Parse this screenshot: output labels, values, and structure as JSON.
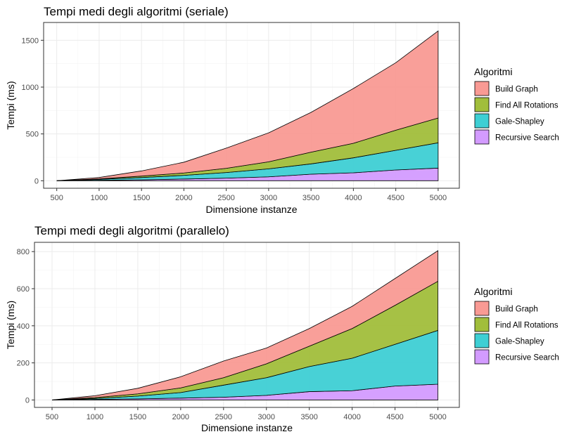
{
  "legend_title": "Algoritmi",
  "chart_data": [
    {
      "type": "area",
      "stacked": true,
      "title": "Tempi medi degli algoritmi (seriale)",
      "xlabel": "Dimensione instanze",
      "ylabel": "Tempi (ms)",
      "x": [
        500,
        1000,
        1500,
        2000,
        2500,
        3000,
        3500,
        4000,
        4500,
        5000
      ],
      "xticks": [
        500,
        1000,
        1500,
        2000,
        2500,
        3000,
        3500,
        4000,
        4500,
        5000
      ],
      "yticks": [
        0,
        500,
        1000,
        1500
      ],
      "xlim": [
        345,
        5250
      ],
      "ylim": [
        -80,
        1690
      ],
      "grid": true,
      "legend_position": "right",
      "series": [
        {
          "name": "Recursive Search",
          "color": "#D39BFF",
          "values": [
            0,
            5,
            10,
            18,
            28,
            42,
            70,
            85,
            115,
            135
          ]
        },
        {
          "name": "Gale-Shapley",
          "color": "#3ECFD4",
          "values": [
            0,
            10,
            25,
            40,
            60,
            85,
            110,
            160,
            210,
            270
          ]
        },
        {
          "name": "Find All Rotations",
          "color": "#A1BE3B",
          "values": [
            0,
            5,
            15,
            25,
            45,
            75,
            125,
            155,
            215,
            265
          ]
        },
        {
          "name": "Build Graph",
          "color": "#F99A94",
          "values": [
            0,
            15,
            55,
            115,
            215,
            310,
            425,
            585,
            720,
            930
          ]
        }
      ]
    },
    {
      "type": "area",
      "stacked": true,
      "title": "Tempi medi degli algoritmi (parallelo)",
      "xlabel": "Dimensione instanze",
      "ylabel": "Tempi (ms)",
      "x": [
        500,
        1000,
        1500,
        2000,
        2500,
        3000,
        3500,
        4000,
        4500,
        5000
      ],
      "xticks": [
        500,
        1000,
        1500,
        2000,
        2500,
        3000,
        3500,
        4000,
        4500,
        5000
      ],
      "yticks": [
        0,
        200,
        400,
        600,
        800
      ],
      "xlim": [
        295,
        5250
      ],
      "ylim": [
        -40,
        850
      ],
      "grid": true,
      "legend_position": "right",
      "series": [
        {
          "name": "Recursive Search",
          "color": "#D39BFF",
          "values": [
            0,
            3,
            6,
            10,
            15,
            25,
            45,
            50,
            75,
            85
          ]
        },
        {
          "name": "Gale-Shapley",
          "color": "#3ECFD4",
          "values": [
            0,
            5,
            15,
            30,
            65,
            95,
            135,
            175,
            225,
            290
          ]
        },
        {
          "name": "Find All Rotations",
          "color": "#A1BE3B",
          "values": [
            0,
            5,
            12,
            25,
            40,
            75,
            110,
            160,
            210,
            265
          ]
        },
        {
          "name": "Build Graph",
          "color": "#F99A94",
          "values": [
            0,
            10,
            30,
            60,
            90,
            85,
            95,
            120,
            145,
            165
          ]
        }
      ]
    }
  ]
}
